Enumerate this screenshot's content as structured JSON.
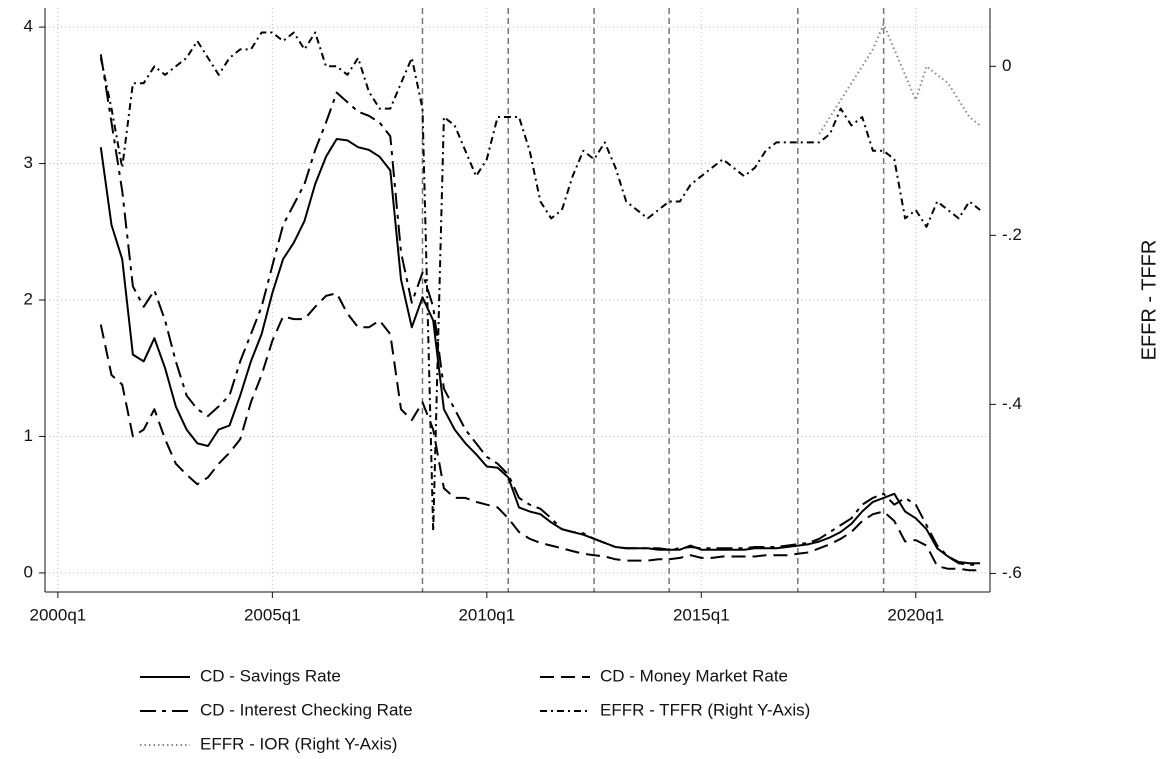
{
  "chart_data": {
    "type": "line",
    "y2label": "EFFR - TFFR",
    "x": [
      2001,
      2001.25,
      2001.5,
      2001.75,
      2002,
      2002.25,
      2002.5,
      2002.75,
      2003,
      2003.25,
      2003.5,
      2003.75,
      2004,
      2004.25,
      2004.5,
      2004.75,
      2005,
      2005.25,
      2005.5,
      2005.75,
      2006,
      2006.25,
      2006.5,
      2006.75,
      2007,
      2007.25,
      2007.5,
      2007.75,
      2008,
      2008.25,
      2008.5,
      2008.75,
      2009,
      2009.25,
      2009.5,
      2009.75,
      2010,
      2010.25,
      2010.5,
      2010.75,
      2011,
      2011.25,
      2011.5,
      2011.75,
      2012,
      2012.25,
      2012.5,
      2012.75,
      2013,
      2013.25,
      2013.5,
      2013.75,
      2014,
      2014.25,
      2014.5,
      2014.75,
      2015,
      2015.25,
      2015.5,
      2015.75,
      2016,
      2016.25,
      2016.5,
      2016.75,
      2017,
      2017.25,
      2017.5,
      2017.75,
      2018,
      2018.25,
      2018.5,
      2018.75,
      2019,
      2019.25,
      2019.5,
      2019.75,
      2020,
      2020.25,
      2020.5,
      2020.75,
      2021,
      2021.25,
      2021.5
    ],
    "series": [
      {
        "name": "CD - Savings Rate",
        "color": "#000000",
        "dash": "none",
        "axis": "y",
        "values": [
          3.12,
          2.55,
          2.3,
          1.6,
          1.55,
          1.72,
          1.5,
          1.22,
          1.05,
          0.95,
          0.93,
          1.05,
          1.08,
          1.3,
          1.55,
          1.75,
          2.05,
          2.3,
          2.42,
          2.58,
          2.85,
          3.05,
          3.18,
          3.17,
          3.12,
          3.1,
          3.05,
          2.95,
          2.15,
          1.8,
          2.02,
          1.85,
          1.2,
          1.05,
          0.95,
          0.87,
          0.78,
          0.77,
          0.7,
          0.48,
          0.45,
          0.43,
          0.37,
          0.32,
          0.3,
          0.28,
          0.25,
          0.22,
          0.19,
          0.18,
          0.18,
          0.18,
          0.17,
          0.17,
          0.17,
          0.2,
          0.17,
          0.17,
          0.17,
          0.17,
          0.17,
          0.18,
          0.18,
          0.18,
          0.19,
          0.2,
          0.21,
          0.23,
          0.26,
          0.3,
          0.36,
          0.45,
          0.52,
          0.55,
          0.58,
          0.45,
          0.4,
          0.32,
          0.18,
          0.12,
          0.08,
          0.07,
          0.07
        ]
      },
      {
        "name": "CD - Money Market Rate",
        "color": "#000000",
        "dash": "14,7",
        "axis": "y",
        "values": [
          1.82,
          1.45,
          1.38,
          1.0,
          1.05,
          1.2,
          0.98,
          0.8,
          0.72,
          0.65,
          0.7,
          0.8,
          0.88,
          0.98,
          1.25,
          1.45,
          1.7,
          1.88,
          1.86,
          1.86,
          1.95,
          2.03,
          2.05,
          1.9,
          1.8,
          1.8,
          1.85,
          1.75,
          1.2,
          1.12,
          1.25,
          1.05,
          0.62,
          0.55,
          0.55,
          0.52,
          0.5,
          0.48,
          0.4,
          0.3,
          0.25,
          0.22,
          0.2,
          0.18,
          0.16,
          0.14,
          0.13,
          0.12,
          0.1,
          0.09,
          0.09,
          0.09,
          0.1,
          0.1,
          0.11,
          0.13,
          0.11,
          0.11,
          0.12,
          0.12,
          0.12,
          0.12,
          0.13,
          0.13,
          0.13,
          0.14,
          0.15,
          0.18,
          0.21,
          0.25,
          0.3,
          0.38,
          0.43,
          0.45,
          0.38,
          0.23,
          0.24,
          0.2,
          0.05,
          0.03,
          0.03,
          0.02,
          0.02
        ]
      },
      {
        "name": "CD - Interest Checking Rate",
        "color": "#000000",
        "dash": "16,6,4,6",
        "axis": "y",
        "values": [
          3.8,
          3.3,
          2.8,
          2.1,
          1.95,
          2.07,
          1.85,
          1.55,
          1.3,
          1.2,
          1.15,
          1.22,
          1.3,
          1.55,
          1.75,
          1.95,
          2.25,
          2.55,
          2.7,
          2.85,
          3.1,
          3.3,
          3.52,
          3.45,
          3.38,
          3.35,
          3.3,
          3.2,
          2.35,
          1.98,
          2.2,
          1.95,
          1.35,
          1.2,
          1.05,
          0.95,
          0.85,
          0.8,
          0.72,
          0.55,
          0.5,
          0.47,
          0.4,
          0.32,
          0.3,
          0.29,
          0.25,
          0.22,
          0.19,
          0.18,
          0.18,
          0.18,
          0.18,
          0.17,
          0.18,
          0.19,
          0.18,
          0.18,
          0.18,
          0.18,
          0.18,
          0.19,
          0.19,
          0.19,
          0.2,
          0.21,
          0.22,
          0.25,
          0.3,
          0.35,
          0.4,
          0.5,
          0.55,
          0.58,
          0.5,
          0.55,
          0.5,
          0.35,
          0.2,
          0.12,
          0.07,
          0.06,
          0.06
        ]
      },
      {
        "name": "EFFR - TFFR (Right Y-Axis)",
        "color": "#000000",
        "dash": "7,4,2,4",
        "axis": "y2",
        "values": [
          0.01,
          -0.05,
          -0.12,
          -0.02,
          -0.02,
          0.0,
          -0.01,
          0.0,
          0.01,
          0.03,
          0.01,
          -0.01,
          0.01,
          0.02,
          0.02,
          0.04,
          0.04,
          0.03,
          0.04,
          0.02,
          0.04,
          0.0,
          0.0,
          -0.01,
          0.01,
          -0.03,
          -0.05,
          -0.05,
          -0.02,
          0.01,
          -0.05,
          -0.55,
          -0.06,
          -0.07,
          -0.1,
          -0.13,
          -0.11,
          -0.06,
          -0.06,
          -0.06,
          -0.1,
          -0.16,
          -0.18,
          -0.17,
          -0.13,
          -0.1,
          -0.11,
          -0.09,
          -0.12,
          -0.16,
          -0.17,
          -0.18,
          -0.17,
          -0.16,
          -0.16,
          -0.14,
          -0.13,
          -0.12,
          -0.11,
          -0.12,
          -0.13,
          -0.12,
          -0.1,
          -0.09,
          -0.09,
          -0.09,
          -0.09,
          -0.09,
          -0.08,
          -0.05,
          -0.07,
          -0.06,
          -0.1,
          -0.1,
          -0.11,
          -0.18,
          -0.17,
          -0.19,
          -0.16,
          -0.17,
          -0.18,
          -0.16,
          -0.17
        ]
      },
      {
        "name": "EFFR - IOR  (Right Y-Axis)",
        "color": "#888888",
        "dash": "1.5,3",
        "axis": "y2",
        "values": [
          null,
          null,
          null,
          null,
          null,
          null,
          null,
          null,
          null,
          null,
          null,
          null,
          null,
          null,
          null,
          null,
          null,
          null,
          null,
          null,
          null,
          null,
          null,
          null,
          null,
          null,
          null,
          null,
          null,
          null,
          null,
          null,
          null,
          null,
          null,
          null,
          null,
          null,
          null,
          null,
          null,
          null,
          null,
          null,
          null,
          null,
          null,
          null,
          null,
          null,
          null,
          null,
          null,
          null,
          null,
          null,
          null,
          null,
          null,
          null,
          null,
          null,
          null,
          null,
          null,
          null,
          null,
          -0.08,
          -0.06,
          -0.04,
          -0.02,
          0.0,
          0.02,
          0.05,
          0.02,
          -0.01,
          -0.04,
          0.0,
          -0.01,
          -0.02,
          -0.04,
          -0.06,
          -0.07
        ]
      }
    ],
    "xlim": [
      1999.7,
      2021.73
    ],
    "xticks": [
      {
        "value": 2000,
        "label": "2000q1"
      },
      {
        "value": 2005,
        "label": "2005q1"
      },
      {
        "value": 2010,
        "label": "2010q1"
      },
      {
        "value": 2015,
        "label": "2015q1"
      },
      {
        "value": 2020,
        "label": "2020q1"
      }
    ],
    "ylim": [
      -0.14,
      4.14
    ],
    "yticks": [
      0,
      1,
      2,
      3,
      4
    ],
    "y2lim": [
      -0.622,
      0.069
    ],
    "y2ticks": [
      {
        "value": 0,
        "label": "0"
      },
      {
        "value": -0.2,
        "label": "-.2"
      },
      {
        "value": -0.4,
        "label": "-.4"
      },
      {
        "value": -0.6,
        "label": "-.6"
      }
    ],
    "vlines": [
      2008.5,
      2010.5,
      2012.5,
      2014.25,
      2017.25,
      2019.25
    ],
    "grid": true,
    "legend": "bottom"
  }
}
